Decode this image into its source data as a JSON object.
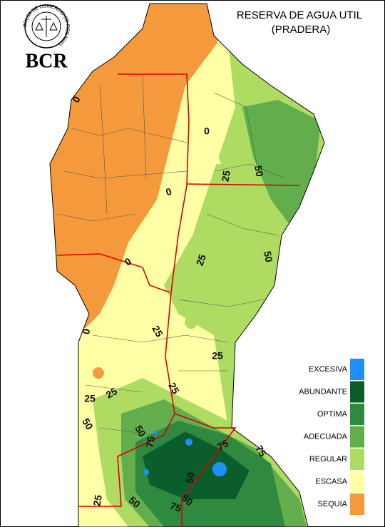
{
  "header": {
    "title": "RESERVA DE AGUA UTIL",
    "subtitle": "(PRADERA)"
  },
  "logo": {
    "ring_text": "BOLSA DE COMERCIO DE ROSARIO",
    "label": "BCR"
  },
  "legend": [
    {
      "label": "EXCESIVA",
      "color": "#1e8fff"
    },
    {
      "label": "ABUNDANTE",
      "color": "#0b5e2c"
    },
    {
      "label": "OPTIMA",
      "color": "#2f8a3f"
    },
    {
      "label": "ADECUADA",
      "color": "#62ad4c"
    },
    {
      "label": "REGULAR",
      "color": "#aedc62"
    },
    {
      "label": "ESCASA",
      "color": "#ffffa6"
    },
    {
      "label": "SEQUIA",
      "color": "#f59a3c"
    }
  ],
  "contour_labels": [
    "0",
    "0",
    "0",
    "0",
    "0",
    "25",
    "50",
    "25",
    "50",
    "25",
    "25",
    "25",
    "25",
    "25",
    "50",
    "50",
    "50",
    "75",
    "75",
    "75",
    "50",
    "25",
    "50",
    "75"
  ]
}
